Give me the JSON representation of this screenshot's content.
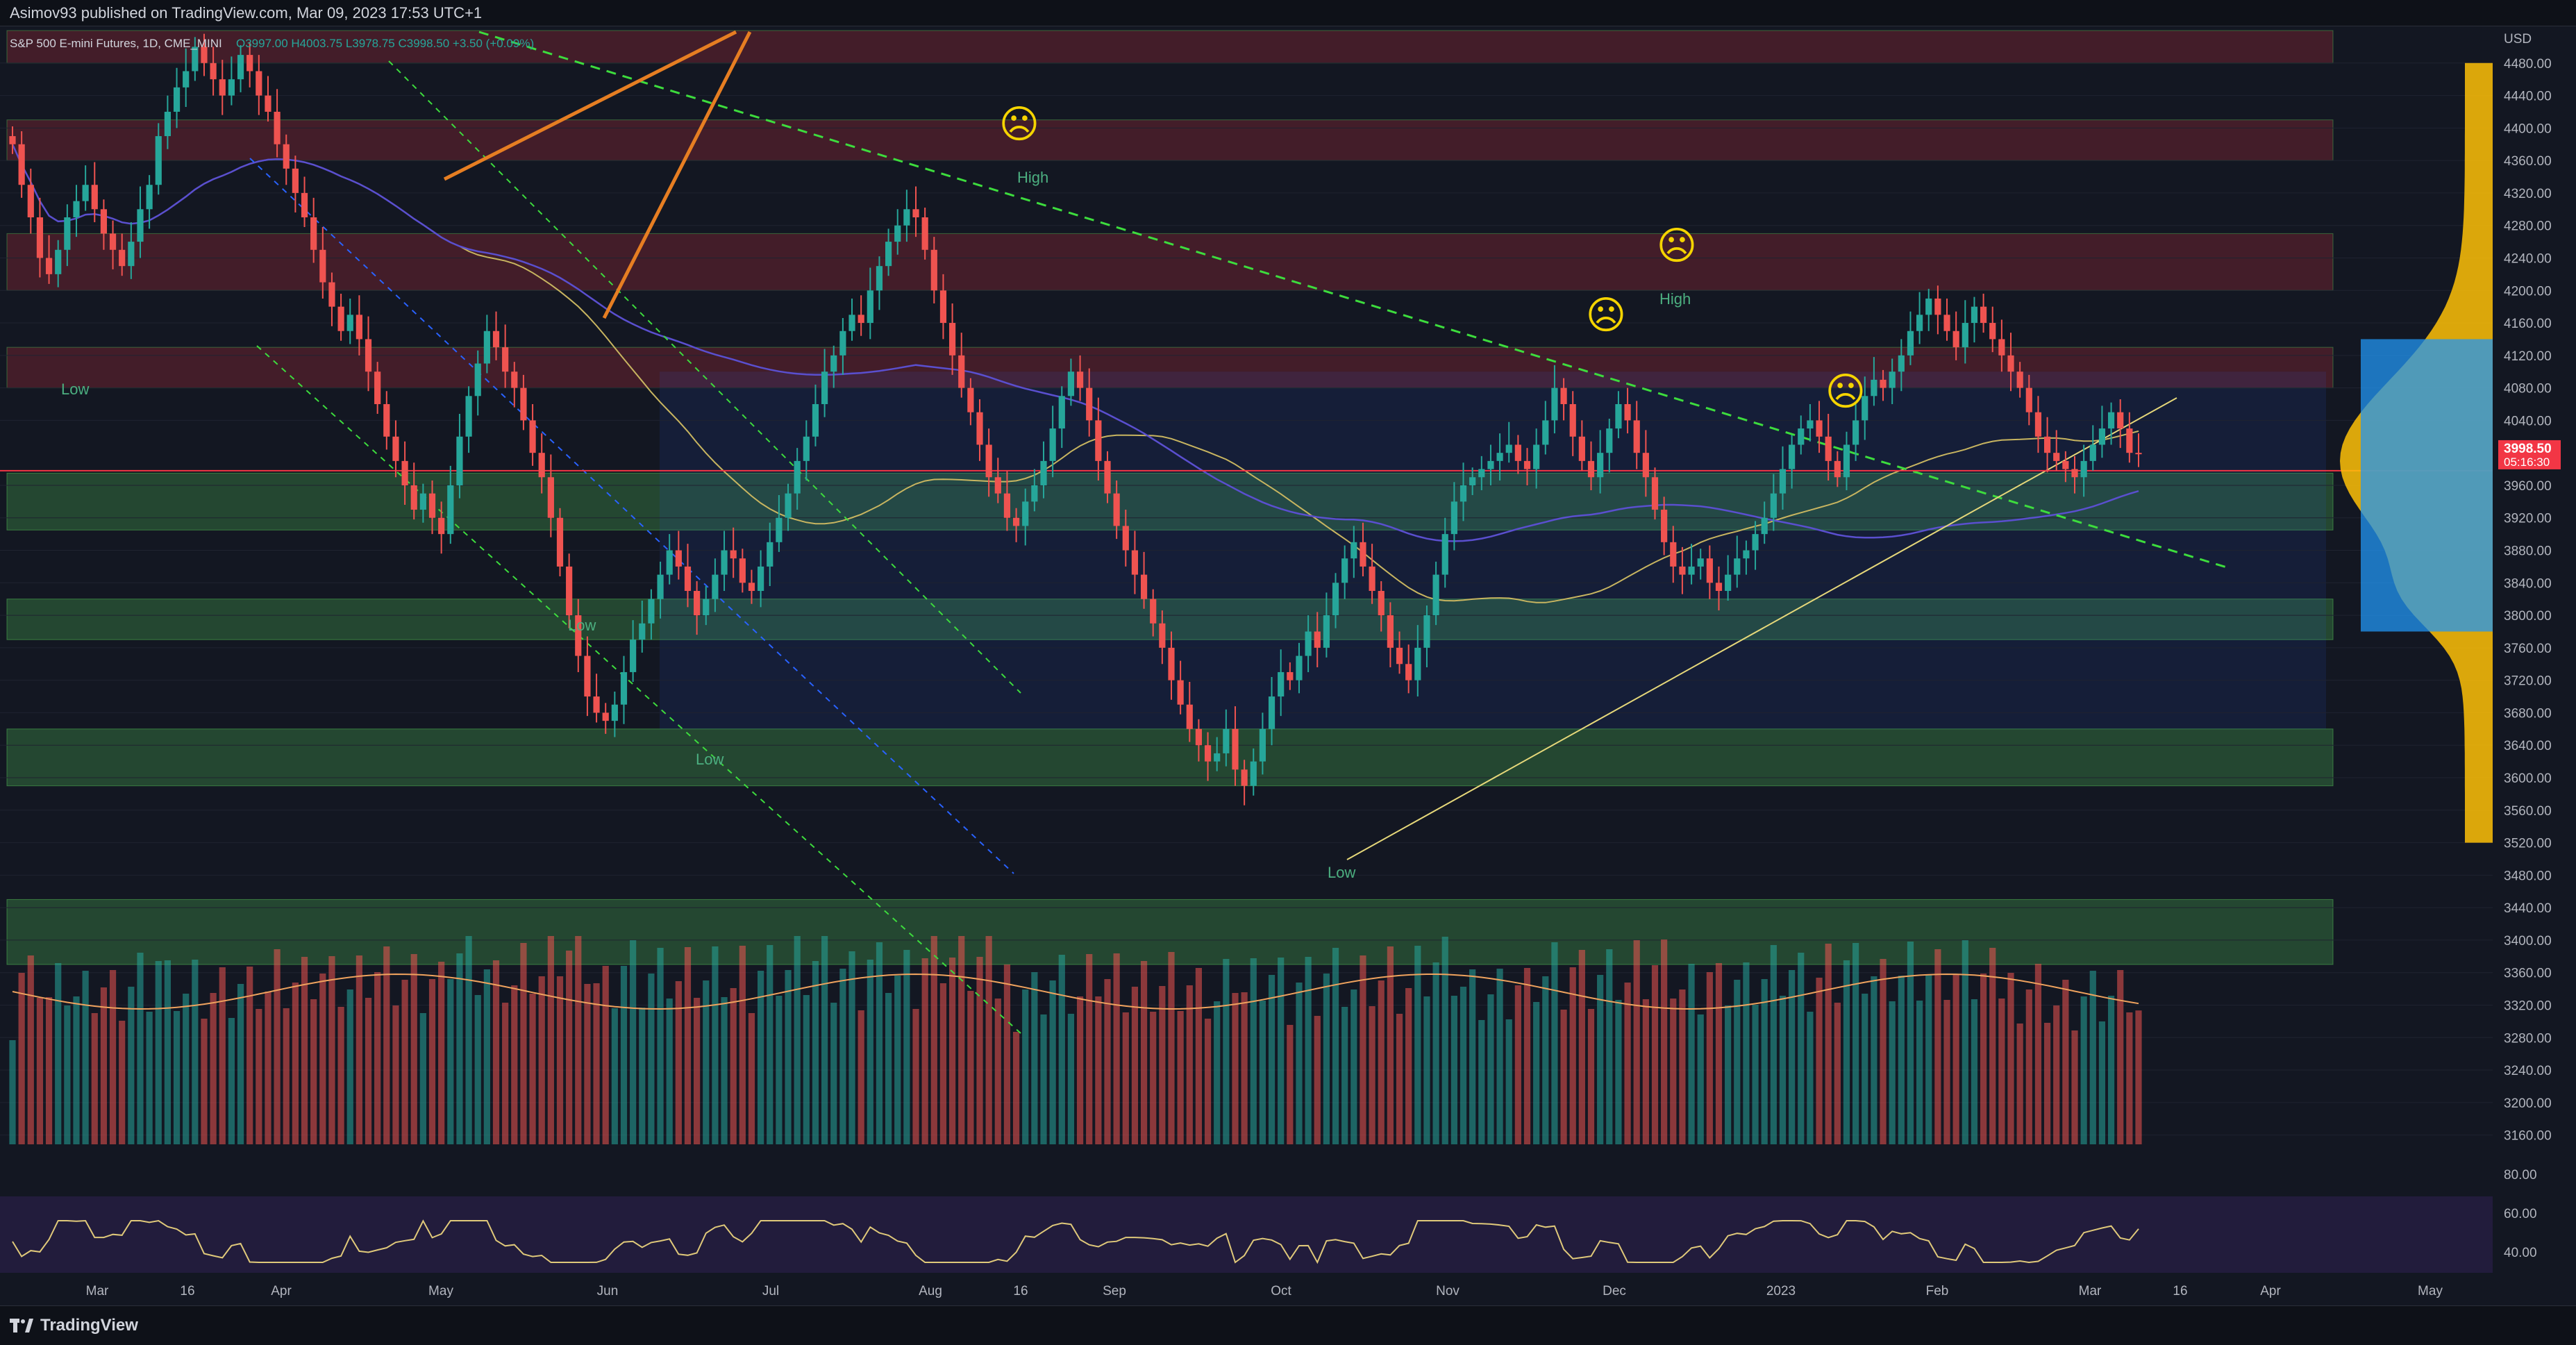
{
  "header": {
    "publisher_line": "Asimov93 published on TradingView.com, Mar 09, 2023 17:53 UTC+1"
  },
  "chart_data": {
    "type": "candlestick",
    "legend": {
      "symbol": "S&P 500 E-mini Futures, 1D, CME_MINI",
      "ohlc_text": "O3997.00 H4003.75 L3978.75 C3998.50 +3.50 (+0.09%)"
    },
    "price_axis": {
      "currency": "USD",
      "ticks": [
        4480,
        4440,
        4400,
        4360,
        4320,
        4280,
        4240,
        4200,
        4160,
        4120,
        4080,
        4040,
        3960,
        3920,
        3880,
        3840,
        3800,
        3760,
        3720,
        3680,
        3640,
        3600,
        3560,
        3520,
        3480,
        3440,
        3400,
        3360,
        3320,
        3280,
        3240,
        3200,
        3160
      ],
      "ylim": [
        3140,
        4520
      ],
      "last_price": "3998.50",
      "countdown": "05:16:30"
    },
    "time_axis": {
      "labels": [
        "Mar",
        "16",
        "Apr",
        "May",
        "Jun",
        "Jul",
        "Aug",
        "16",
        "Sep",
        "Oct",
        "Nov",
        "Dec",
        "2023",
        "Feb",
        "Mar",
        "16",
        "Apr",
        "May"
      ]
    },
    "zones": {
      "supply": [
        [
          4480,
          4520
        ],
        [
          4360,
          4410
        ],
        [
          4200,
          4270
        ],
        [
          4080,
          4130
        ]
      ],
      "demand": [
        [
          3905,
          3975
        ],
        [
          3770,
          3820
        ],
        [
          3590,
          3660
        ],
        [
          3370,
          3450
        ]
      ]
    },
    "annotations": {
      "high_label": "High",
      "low_label": "Low",
      "sad_face": "☹"
    },
    "series_daily_closes": [
      4380,
      4330,
      4290,
      4240,
      4220,
      4250,
      4290,
      4310,
      4330,
      4300,
      4270,
      4250,
      4230,
      4260,
      4300,
      4330,
      4390,
      4420,
      4450,
      4470,
      4500,
      4480,
      4460,
      4440,
      4460,
      4490,
      4470,
      4440,
      4420,
      4380,
      4350,
      4320,
      4290,
      4250,
      4210,
      4180,
      4150,
      4170,
      4140,
      4100,
      4060,
      4020,
      3990,
      3960,
      3930,
      3950,
      3920,
      3900,
      3960,
      4020,
      4070,
      4110,
      4150,
      4130,
      4100,
      4080,
      4040,
      4000,
      3970,
      3920,
      3860,
      3800,
      3750,
      3700,
      3680,
      3670,
      3690,
      3730,
      3770,
      3790,
      3820,
      3850,
      3880,
      3860,
      3830,
      3800,
      3820,
      3850,
      3880,
      3870,
      3840,
      3830,
      3860,
      3890,
      3920,
      3950,
      3990,
      4020,
      4060,
      4100,
      4120,
      4150,
      4170,
      4160,
      4200,
      4230,
      4260,
      4280,
      4300,
      4290,
      4250,
      4200,
      4160,
      4120,
      4080,
      4050,
      4010,
      3970,
      3950,
      3920,
      3910,
      3940,
      3960,
      3990,
      4030,
      4070,
      4100,
      4080,
      4040,
      3990,
      3950,
      3910,
      3880,
      3850,
      3820,
      3790,
      3760,
      3720,
      3690,
      3660,
      3640,
      3620,
      3630,
      3660,
      3610,
      3590,
      3620,
      3660,
      3700,
      3730,
      3720,
      3750,
      3780,
      3760,
      3800,
      3840,
      3870,
      3890,
      3860,
      3830,
      3800,
      3760,
      3740,
      3720,
      3760,
      3800,
      3850,
      3900,
      3940,
      3960,
      3970,
      3980,
      3990,
      4000,
      4010,
      3990,
      3980,
      4010,
      4040,
      4080,
      4060,
      4020,
      3990,
      3970,
      4000,
      4030,
      4060,
      4040,
      4000,
      3970,
      3930,
      3890,
      3860,
      3850,
      3860,
      3870,
      3840,
      3830,
      3850,
      3870,
      3880,
      3900,
      3920,
      3950,
      3980,
      4010,
      4030,
      4040,
      4020,
      3990,
      3970,
      4010,
      4040,
      4070,
      4090,
      4080,
      4100,
      4120,
      4150,
      4170,
      4190,
      4170,
      4150,
      4130,
      4160,
      4180,
      4160,
      4140,
      4120,
      4100,
      4080,
      4050,
      4020,
      4000,
      3990,
      3980,
      3970,
      3990,
      4010,
      4030,
      4050,
      4030,
      4000,
      3998.5
    ]
  }
}
